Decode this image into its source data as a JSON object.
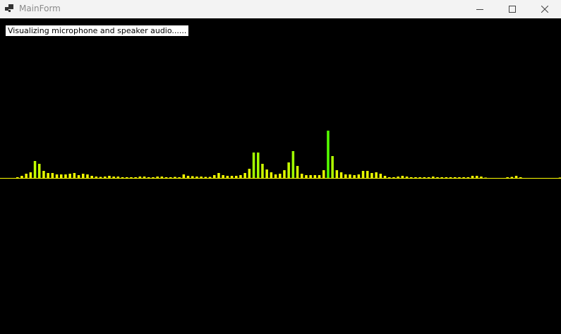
{
  "window": {
    "title": "MainForm",
    "icon": "app-form-icon"
  },
  "controls": {
    "minimize": "minimize-icon",
    "maximize": "maximize-icon",
    "close": "close-icon"
  },
  "status_text": "Visualizing microphone and speaker audio......",
  "visualizer": {
    "colors": {
      "background": "#000000",
      "baseline": "#ffff00",
      "low": "#ffff00",
      "high": "#55ff00"
    },
    "bars": [
      1,
      3,
      6,
      8,
      24,
      20,
      10,
      7,
      7,
      5,
      5,
      5,
      6,
      7,
      4,
      6,
      5,
      3,
      2,
      1.5,
      2,
      3,
      2,
      2,
      1,
      1,
      1,
      1,
      2,
      2,
      1,
      1,
      2,
      2,
      1,
      1,
      1.5,
      1,
      5,
      3,
      2.5,
      2,
      2,
      1.5,
      1.5,
      4,
      7,
      4,
      3,
      3,
      3,
      4,
      7,
      13,
      36,
      36,
      20,
      12,
      8,
      5,
      6,
      11,
      22,
      38,
      17,
      6,
      4,
      4,
      4,
      4,
      11,
      67,
      31,
      11,
      8,
      5,
      5,
      4,
      5,
      10,
      10,
      7,
      8,
      6,
      3,
      1,
      1,
      2,
      3,
      2,
      1,
      1,
      1,
      1,
      1,
      2,
      1,
      1,
      1,
      1,
      1,
      1,
      1,
      1,
      3,
      3,
      2,
      0.5,
      0,
      0,
      0,
      0,
      1,
      1.5,
      3,
      1,
      0,
      0,
      0,
      0,
      0,
      0,
      0,
      0,
      0.5
    ]
  }
}
